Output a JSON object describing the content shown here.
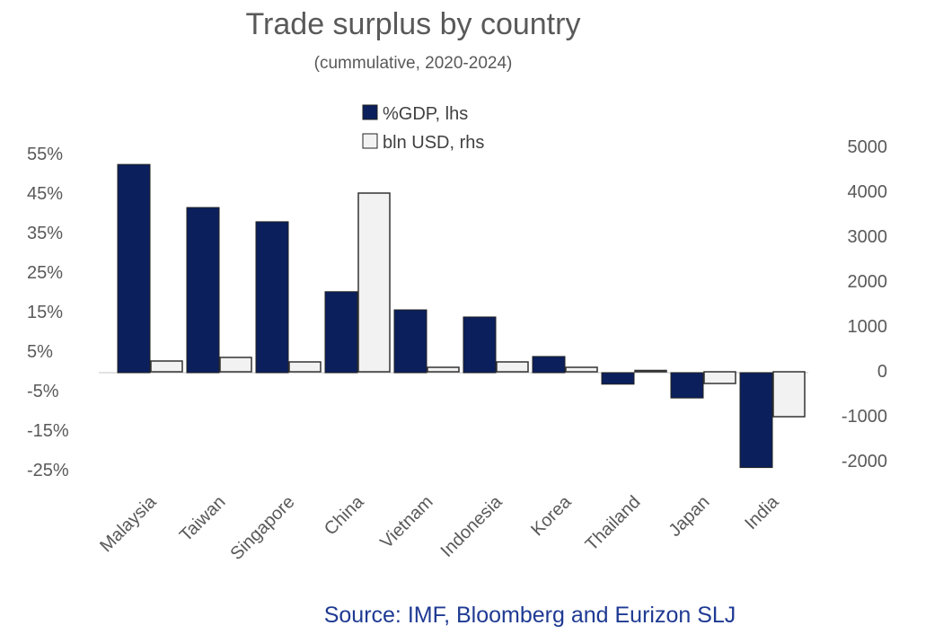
{
  "chart_data": {
    "type": "bar",
    "title": "Trade surplus by country",
    "subtitle": "(cummulative, 2020-2024)",
    "categories": [
      "Malaysia",
      "Taiwan",
      "Singapore",
      "China",
      "Vietnam",
      "Indonesia",
      "Korea",
      "Thailand",
      "Japan",
      "India"
    ],
    "series": [
      {
        "name": "%GDP, lhs",
        "axis": "left",
        "color": "#0a1f5c",
        "values": [
          52.7,
          41.8,
          38.2,
          20.5,
          15.9,
          14.1,
          4.1,
          -2.9,
          -6.4,
          -24.0
        ]
      },
      {
        "name": "bln USD, rhs",
        "axis": "right",
        "color": "#f2f2f2",
        "values": [
          220,
          300,
          200,
          3960,
          80,
          200,
          80,
          10,
          -280,
          -1020
        ]
      }
    ],
    "left_axis": {
      "ticks": [
        55,
        45,
        35,
        25,
        15,
        5,
        -5,
        -15,
        -25
      ],
      "tick_labels": [
        "55%",
        "45%",
        "35%",
        "25%",
        "15%",
        "5%",
        "-5%",
        "-15%",
        "-25%"
      ],
      "range": [
        -27,
        57
      ]
    },
    "right_axis": {
      "ticks": [
        5000,
        4000,
        3000,
        2000,
        1000,
        0,
        -1000,
        -2000
      ],
      "tick_labels": [
        "5000",
        "4000",
        "3000",
        "2000",
        "1000",
        "0",
        "-1000",
        "-2000"
      ],
      "range": [
        -2200,
        5000
      ]
    },
    "legend_placement": "top-center",
    "grid": false,
    "source": "Source: IMF, Bloomberg and Eurizon SLJ"
  }
}
